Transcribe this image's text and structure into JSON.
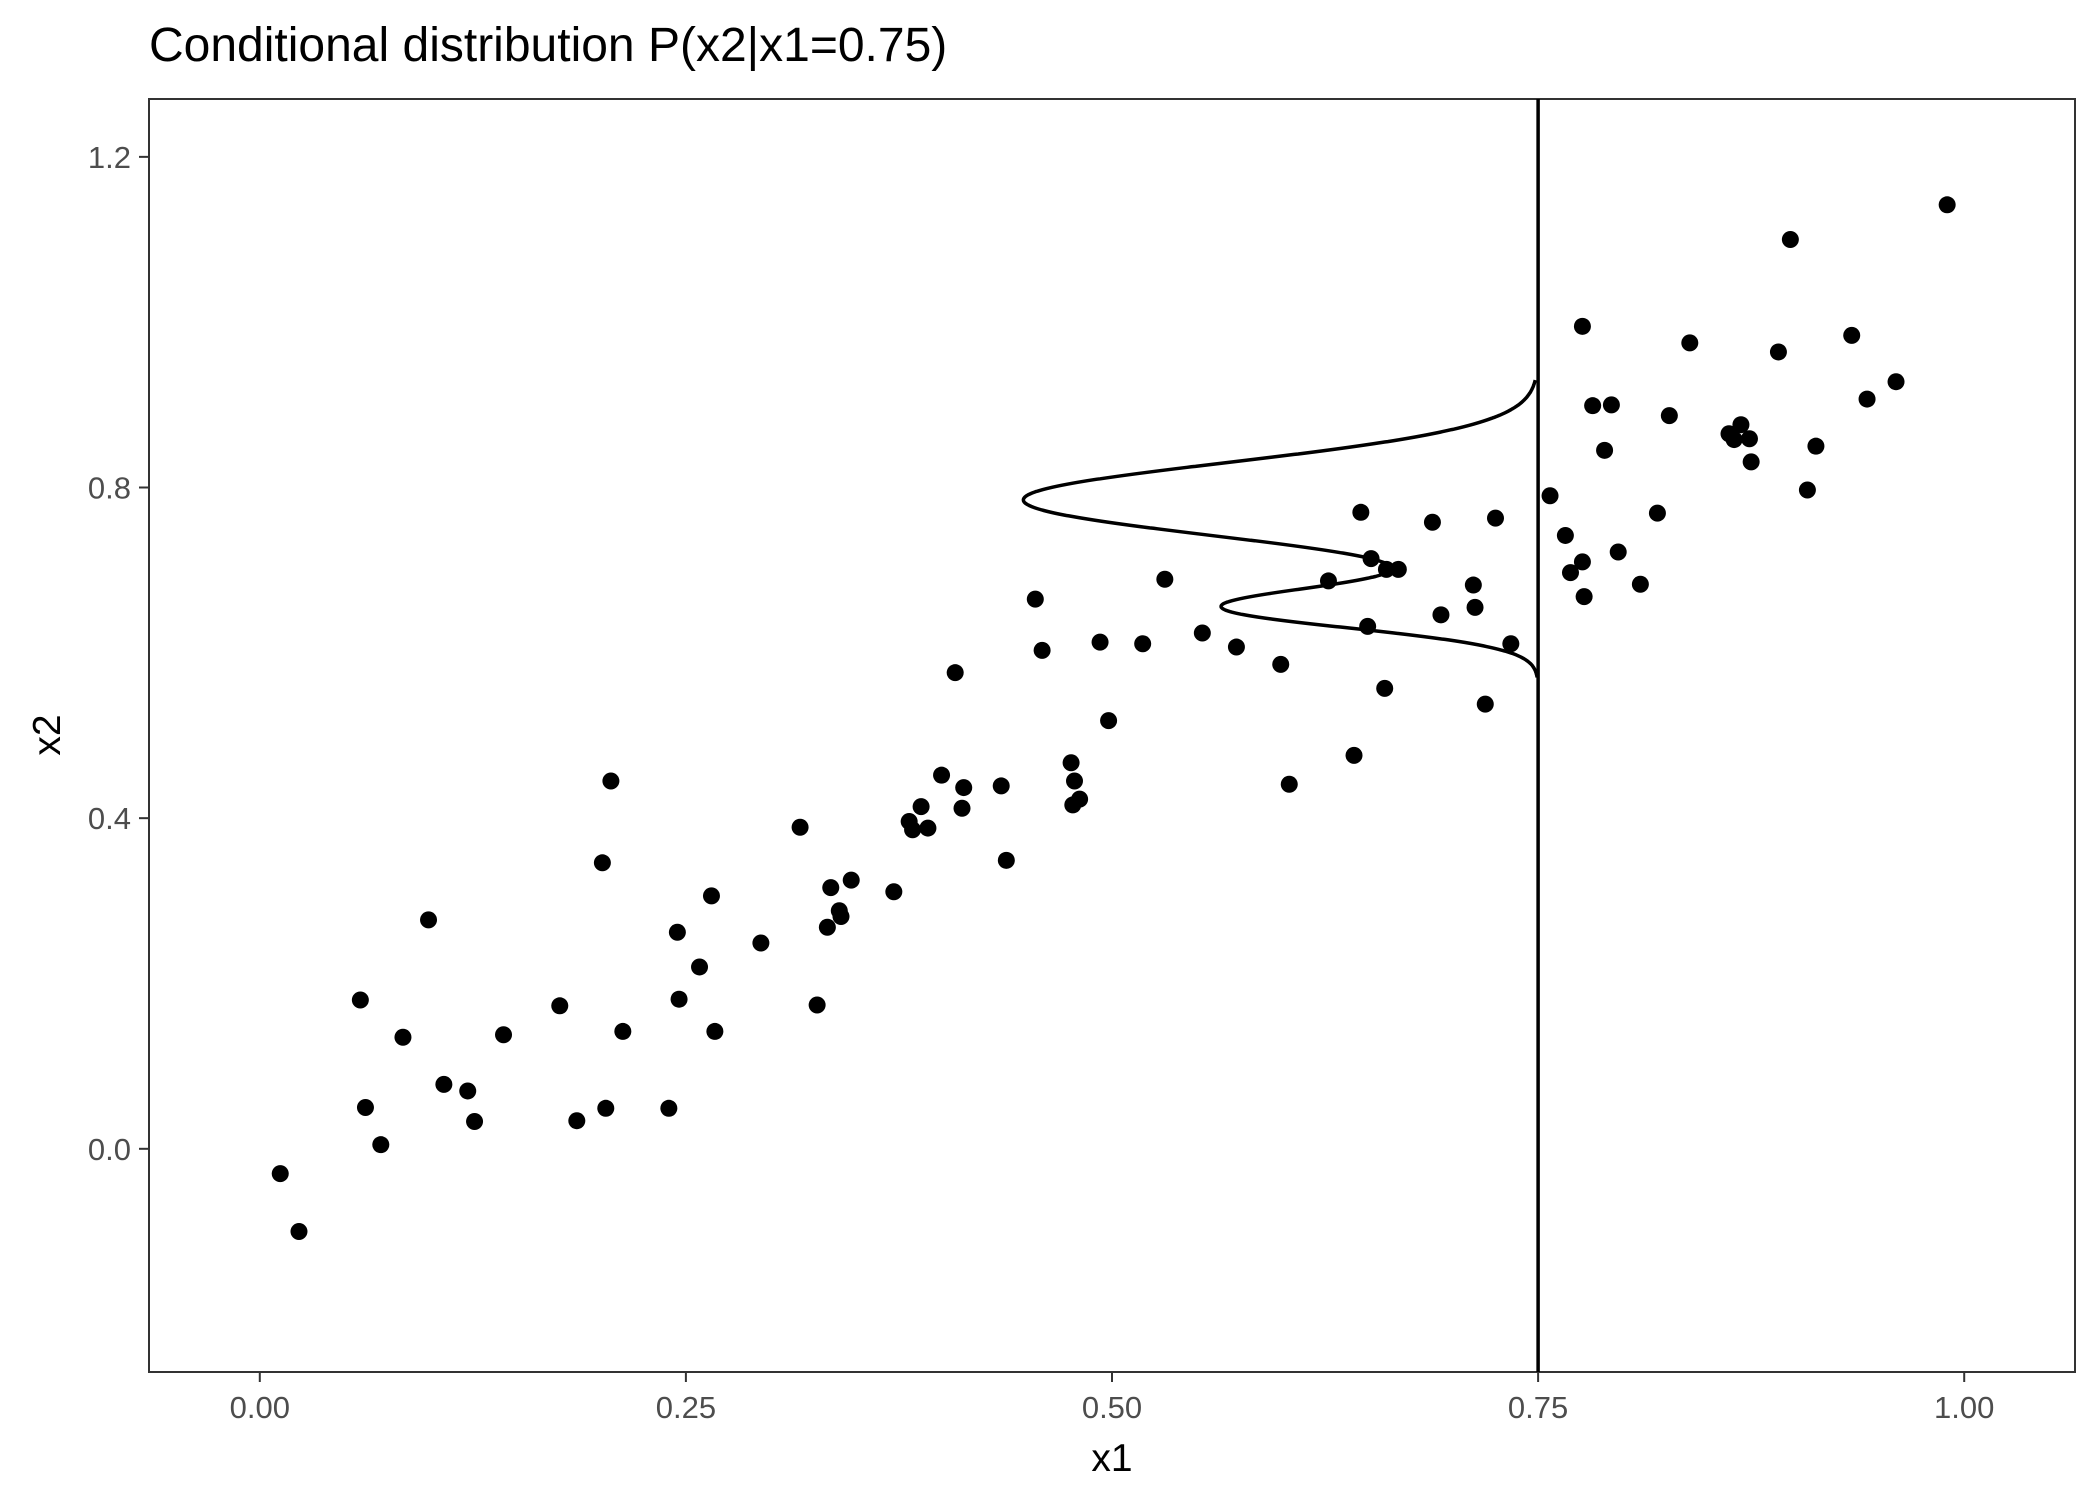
{
  "chart_data": {
    "type": "scatter",
    "title": "Conditional distribution P(x2|x1=0.75)",
    "xlabel": "x1",
    "ylabel": "x2",
    "xlim": [
      -0.065,
      1.065
    ],
    "ylim": [
      -0.27,
      1.27
    ],
    "grid": false,
    "x_ticks": [
      0.0,
      0.25,
      0.5,
      0.75,
      1.0
    ],
    "x_tick_labels": [
      "0.00",
      "0.25",
      "0.50",
      "0.75",
      "1.00"
    ],
    "y_ticks": [
      0.0,
      0.4,
      0.8,
      1.2
    ],
    "y_tick_labels": [
      "0.0",
      "0.4",
      "0.8",
      "1.2"
    ],
    "vline_x": 0.75,
    "colors": {
      "points": "#000000",
      "line": "#000000",
      "axis_text": "#4d4d4d"
    },
    "density_curve": {
      "description_of_shape": "bimodal",
      "base_x": 0.75,
      "components": [
        {
          "weight": 0.75,
          "mean": 0.785,
          "sd": 0.045
        },
        {
          "weight": 0.25,
          "mean": 0.655,
          "sd": 0.025
        }
      ],
      "y_range": [
        0.57,
        0.93
      ],
      "peak_x": 0.448
    },
    "points": [
      [
        0.012,
        -0.03
      ],
      [
        0.023,
        -0.1
      ],
      [
        0.059,
        0.18
      ],
      [
        0.062,
        0.05
      ],
      [
        0.071,
        0.005
      ],
      [
        0.084,
        0.135
      ],
      [
        0.099,
        0.277
      ],
      [
        0.108,
        0.078
      ],
      [
        0.122,
        0.07
      ],
      [
        0.126,
        0.033
      ],
      [
        0.143,
        0.138
      ],
      [
        0.176,
        0.173
      ],
      [
        0.186,
        0.034
      ],
      [
        0.201,
        0.346
      ],
      [
        0.203,
        0.049
      ],
      [
        0.206,
        0.445
      ],
      [
        0.213,
        0.142
      ],
      [
        0.24,
        0.049
      ],
      [
        0.245,
        0.262
      ],
      [
        0.246,
        0.181
      ],
      [
        0.258,
        0.22
      ],
      [
        0.265,
        0.306
      ],
      [
        0.267,
        0.142
      ],
      [
        0.294,
        0.249
      ],
      [
        0.317,
        0.389
      ],
      [
        0.327,
        0.174
      ],
      [
        0.333,
        0.268
      ],
      [
        0.335,
        0.316
      ],
      [
        0.34,
        0.288
      ],
      [
        0.341,
        0.281
      ],
      [
        0.347,
        0.325
      ],
      [
        0.372,
        0.311
      ],
      [
        0.381,
        0.396
      ],
      [
        0.383,
        0.386
      ],
      [
        0.388,
        0.414
      ],
      [
        0.392,
        0.388
      ],
      [
        0.4,
        0.452
      ],
      [
        0.408,
        0.576
      ],
      [
        0.412,
        0.412
      ],
      [
        0.413,
        0.437
      ],
      [
        0.435,
        0.439
      ],
      [
        0.438,
        0.349
      ],
      [
        0.455,
        0.665
      ],
      [
        0.459,
        0.603
      ],
      [
        0.476,
        0.467
      ],
      [
        0.477,
        0.416
      ],
      [
        0.478,
        0.445
      ],
      [
        0.481,
        0.423
      ],
      [
        0.493,
        0.613
      ],
      [
        0.498,
        0.518
      ],
      [
        0.518,
        0.611
      ],
      [
        0.531,
        0.689
      ],
      [
        0.553,
        0.624
      ],
      [
        0.573,
        0.607
      ],
      [
        0.599,
        0.586
      ],
      [
        0.604,
        0.441
      ],
      [
        0.627,
        0.687
      ],
      [
        0.642,
        0.476
      ],
      [
        0.646,
        0.77
      ],
      [
        0.65,
        0.632
      ],
      [
        0.652,
        0.714
      ],
      [
        0.66,
        0.557
      ],
      [
        0.661,
        0.701
      ],
      [
        0.668,
        0.701
      ],
      [
        0.688,
        0.758
      ],
      [
        0.693,
        0.646
      ],
      [
        0.712,
        0.682
      ],
      [
        0.713,
        0.655
      ],
      [
        0.719,
        0.538
      ],
      [
        0.725,
        0.763
      ],
      [
        0.734,
        0.611
      ],
      [
        0.757,
        0.79
      ],
      [
        0.766,
        0.742
      ],
      [
        0.769,
        0.697
      ],
      [
        0.776,
        0.71
      ],
      [
        0.776,
        0.995
      ],
      [
        0.777,
        0.668
      ],
      [
        0.782,
        0.899
      ],
      [
        0.789,
        0.845
      ],
      [
        0.793,
        0.9
      ],
      [
        0.797,
        0.722
      ],
      [
        0.81,
        0.683
      ],
      [
        0.82,
        0.769
      ],
      [
        0.827,
        0.887
      ],
      [
        0.839,
        0.975
      ],
      [
        0.862,
        0.865
      ],
      [
        0.865,
        0.858
      ],
      [
        0.869,
        0.876
      ],
      [
        0.874,
        0.859
      ],
      [
        0.875,
        0.831
      ],
      [
        0.891,
        0.964
      ],
      [
        0.898,
        1.1
      ],
      [
        0.908,
        0.797
      ],
      [
        0.913,
        0.85
      ],
      [
        0.934,
        0.984
      ],
      [
        0.943,
        0.907
      ],
      [
        0.96,
        0.928
      ],
      [
        0.99,
        1.142
      ]
    ]
  }
}
